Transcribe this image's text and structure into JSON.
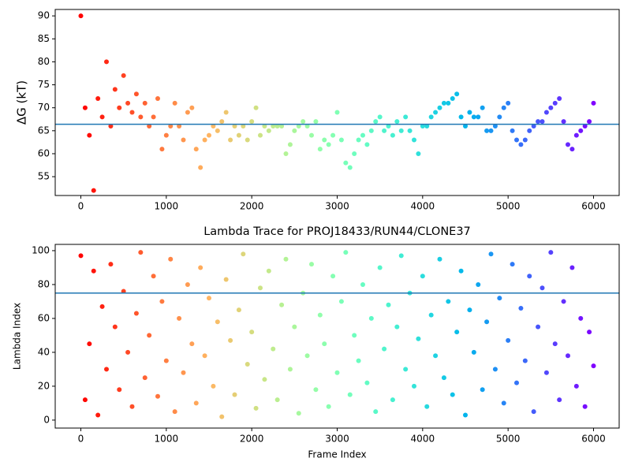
{
  "chart_data": [
    {
      "type": "scatter",
      "ylabel": "ΔG (kT)",
      "colormap": "rainbow_r",
      "hline": 66.4,
      "hline_color": "#1f77b4",
      "xlim": [
        -300,
        6300
      ],
      "ylim": [
        50.9,
        91.4
      ],
      "xticks": [
        0,
        1000,
        2000,
        3000,
        4000,
        5000,
        6000
      ],
      "yticks": [
        55,
        60,
        65,
        70,
        75,
        80,
        85,
        90
      ],
      "x": [
        0,
        50,
        100,
        150,
        200,
        250,
        300,
        350,
        400,
        450,
        500,
        550,
        600,
        650,
        700,
        750,
        800,
        850,
        900,
        950,
        1000,
        1050,
        1100,
        1150,
        1200,
        1250,
        1300,
        1350,
        1400,
        1450,
        1500,
        1550,
        1600,
        1650,
        1700,
        1750,
        1800,
        1850,
        1900,
        1950,
        2000,
        2050,
        2100,
        2150,
        2200,
        2250,
        2300,
        2350,
        2400,
        2450,
        2500,
        2550,
        2600,
        2650,
        2700,
        2750,
        2800,
        2850,
        2900,
        2950,
        3000,
        3050,
        3100,
        3150,
        3200,
        3250,
        3300,
        3350,
        3400,
        3450,
        3500,
        3550,
        3600,
        3650,
        3700,
        3750,
        3800,
        3850,
        3900,
        3950,
        4000,
        4050,
        4100,
        4150,
        4200,
        4250,
        4300,
        4350,
        4400,
        4450,
        4500,
        4550,
        4600,
        4650,
        4700,
        4750,
        4800,
        4850,
        4900,
        4950,
        5000,
        5050,
        5100,
        5150,
        5200,
        5250,
        5300,
        5350,
        5400,
        5450,
        5500,
        5550,
        5600,
        5650,
        5700,
        5750,
        5800,
        5850,
        5900,
        5950,
        6000
      ],
      "values": [
        90,
        70,
        64,
        52,
        72,
        68,
        80,
        66,
        74,
        70,
        77,
        71,
        69,
        73,
        68,
        71,
        66,
        68,
        72,
        61,
        64,
        66,
        71,
        66,
        63,
        69,
        70,
        61,
        57,
        63,
        64,
        66,
        65,
        67,
        69,
        63,
        66,
        64,
        66,
        63,
        67,
        70,
        64,
        66,
        65,
        66,
        66,
        66,
        60,
        62,
        65,
        66,
        67,
        66,
        64,
        67,
        61,
        63,
        62,
        64,
        69,
        63,
        58,
        57,
        60,
        63,
        64,
        62,
        65,
        67,
        68,
        65,
        66,
        64,
        67,
        65,
        68,
        65,
        63,
        60,
        66,
        66,
        68,
        69,
        70,
        71,
        71,
        72,
        73,
        68,
        66,
        69,
        68,
        68,
        70,
        65,
        65,
        66,
        68,
        70,
        71,
        65,
        63,
        62,
        63,
        65,
        66,
        67,
        67,
        69,
        70,
        71,
        72,
        67,
        62,
        61,
        64,
        65,
        66,
        67,
        71
      ]
    },
    {
      "type": "scatter",
      "title": "Lambda Trace for PROJ18433/RUN44/CLONE37",
      "xlabel": "Frame Index",
      "ylabel": "Lambda Index",
      "colormap": "rainbow_r",
      "hline": 75,
      "hline_color": "#1f77b4",
      "xlim": [
        -300,
        6300
      ],
      "ylim": [
        -4.7,
        103.7
      ],
      "xticks": [
        0,
        1000,
        2000,
        3000,
        4000,
        5000,
        6000
      ],
      "yticks": [
        0,
        20,
        40,
        60,
        80,
        100
      ],
      "x": [
        0,
        50,
        100,
        150,
        200,
        250,
        300,
        350,
        400,
        450,
        500,
        550,
        600,
        650,
        700,
        750,
        800,
        850,
        900,
        950,
        1000,
        1050,
        1100,
        1150,
        1200,
        1250,
        1300,
        1350,
        1400,
        1450,
        1500,
        1550,
        1600,
        1650,
        1700,
        1750,
        1800,
        1850,
        1900,
        1950,
        2000,
        2050,
        2100,
        2150,
        2200,
        2250,
        2300,
        2350,
        2400,
        2450,
        2500,
        2550,
        2600,
        2650,
        2700,
        2750,
        2800,
        2850,
        2900,
        2950,
        3000,
        3050,
        3100,
        3150,
        3200,
        3250,
        3300,
        3350,
        3400,
        3450,
        3500,
        3550,
        3600,
        3650,
        3700,
        3750,
        3800,
        3850,
        3900,
        3950,
        4000,
        4050,
        4100,
        4150,
        4200,
        4250,
        4300,
        4350,
        4400,
        4450,
        4500,
        4550,
        4600,
        4650,
        4700,
        4750,
        4800,
        4850,
        4900,
        4950,
        5000,
        5050,
        5100,
        5150,
        5200,
        5250,
        5300,
        5350,
        5400,
        5450,
        5500,
        5550,
        5600,
        5650,
        5700,
        5750,
        5800,
        5850,
        5900,
        5950,
        6000
      ],
      "values": [
        97,
        12,
        45,
        88,
        3,
        67,
        30,
        92,
        55,
        18,
        76,
        40,
        8,
        63,
        99,
        25,
        50,
        85,
        14,
        70,
        35,
        95,
        5,
        60,
        28,
        80,
        45,
        10,
        90,
        38,
        72,
        20,
        58,
        2,
        83,
        47,
        15,
        65,
        98,
        33,
        52,
        7,
        78,
        24,
        88,
        42,
        12,
        68,
        95,
        30,
        55,
        4,
        75,
        38,
        92,
        18,
        62,
        45,
        8,
        85,
        28,
        70,
        99,
        15,
        50,
        35,
        80,
        22,
        60,
        5,
        90,
        42,
        68,
        12,
        55,
        97,
        30,
        75,
        20,
        48,
        85,
        8,
        62,
        38,
        95,
        25,
        70,
        15,
        52,
        88,
        3,
        65,
        40,
        80,
        18,
        58,
        98,
        30,
        72,
        10,
        47,
        92,
        22,
        66,
        35,
        85,
        5,
        55,
        78,
        28,
        99,
        45,
        12,
        70,
        38,
        90,
        20,
        60,
        8,
        52,
        32
      ]
    }
  ]
}
